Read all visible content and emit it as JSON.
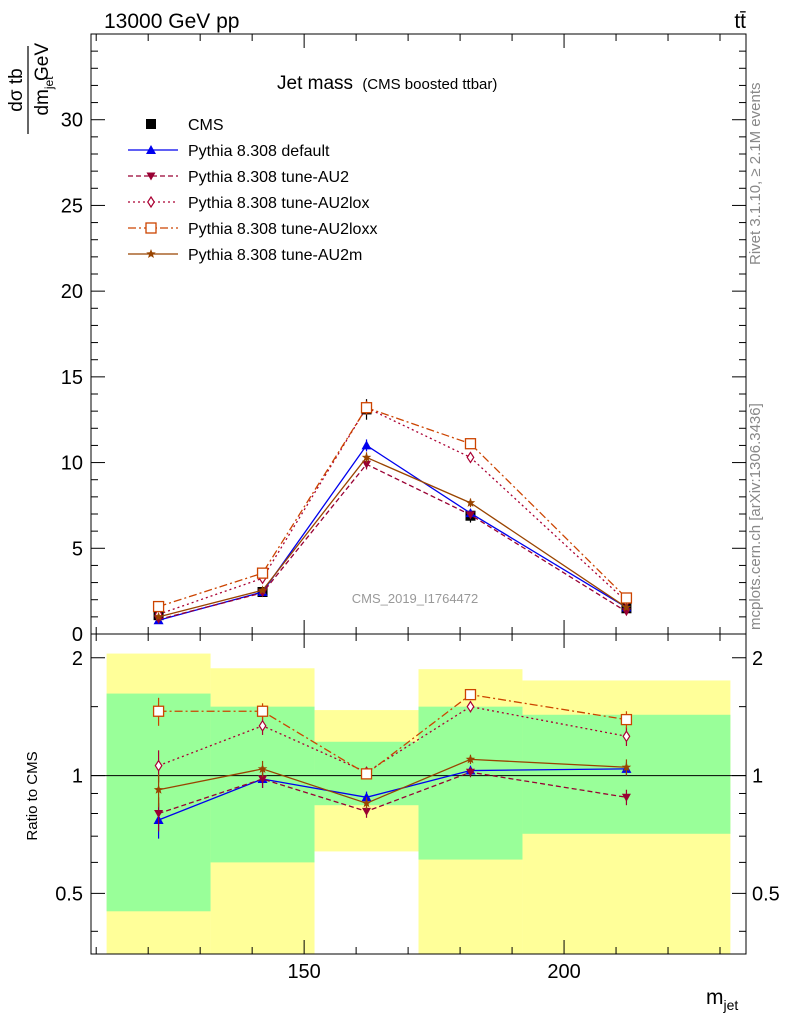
{
  "header": {
    "energy_label": "13000 GeV pp",
    "process_label": "tt̄"
  },
  "side": {
    "rivet": "Rivet 3.1.10, ≥ 2.1M events",
    "mcplots": "mcplots.cern.ch [arXiv:1306.3436]"
  },
  "watermark": "CMS_2019_I1764472",
  "chart_data": [
    {
      "type": "line",
      "title": "Jet mass",
      "subtitle": "(CMS boosted ttbar)",
      "ylabel_num": "dσ   tb",
      "ylabel_den": "dm",
      "ylabel_den_sub": "jet",
      "ylabel_unit": "GeV",
      "xlabel": "m",
      "xlabel_sub": "jet",
      "xlim": [
        109,
        235
      ],
      "ylim": [
        0,
        35
      ],
      "yticks": [
        "0",
        "5",
        "10",
        "15",
        "20",
        "25",
        "30"
      ],
      "bins": [
        [
          112,
          132
        ],
        [
          132,
          152
        ],
        [
          152,
          172
        ],
        [
          172,
          192
        ],
        [
          192,
          232
        ]
      ],
      "x": [
        122,
        142,
        162,
        182,
        212
      ],
      "series": [
        {
          "name": "CMS",
          "values": [
            1.1,
            2.45,
            13.1,
            6.9,
            1.5
          ],
          "errors": [
            0.2,
            0.25,
            0.6,
            0.4,
            0.15
          ],
          "color": "#000000",
          "marker": "square-filled",
          "dash": ""
        },
        {
          "name": "Pythia 8.308 default",
          "values": [
            0.8,
            2.45,
            11.0,
            7.05,
            1.55
          ],
          "errors": [
            0.07,
            0.1,
            0.35,
            0.2,
            0.1
          ],
          "color": "#0000ee",
          "marker": "triangle-up-filled",
          "dash": ""
        },
        {
          "name": "Pythia 8.308 tune-AU2",
          "values": [
            0.85,
            2.4,
            9.9,
            6.95,
            1.3
          ],
          "errors": [
            0.07,
            0.1,
            0.3,
            0.2,
            0.1
          ],
          "color": "#990033",
          "marker": "triangle-down-filled",
          "dash": "5,3"
        },
        {
          "name": "Pythia 8.308 tune-AU2lox",
          "values": [
            1.15,
            3.25,
            13.2,
            10.3,
            1.9
          ],
          "errors": [
            0.08,
            0.12,
            0.4,
            0.3,
            0.12
          ],
          "color": "#aa0033",
          "marker": "diamond-open",
          "dash": "2,3"
        },
        {
          "name": "Pythia 8.308 tune-AU2loxx",
          "values": [
            1.6,
            3.55,
            13.2,
            11.1,
            2.1
          ],
          "errors": [
            0.08,
            0.12,
            0.4,
            0.3,
            0.12
          ],
          "color": "#cc4400",
          "marker": "square-open",
          "dash": "8,3,2,3"
        },
        {
          "name": "Pythia 8.308 tune-AU2m",
          "values": [
            1.0,
            2.55,
            10.3,
            7.65,
            1.55
          ],
          "errors": [
            0.07,
            0.1,
            0.3,
            0.25,
            0.1
          ],
          "color": "#994400",
          "marker": "star",
          "dash": ""
        }
      ]
    },
    {
      "type": "line",
      "ylabel": "Ratio to CMS",
      "ylim": [
        0.35,
        2.3
      ],
      "log_y": true,
      "yticks": [
        "0.5",
        "1",
        "2"
      ],
      "xticks": [
        "150",
        "200"
      ],
      "reference_line": 1,
      "band_green": [
        [
          0.45,
          1.62
        ],
        [
          0.6,
          1.5
        ],
        [
          0.84,
          1.22
        ],
        [
          0.61,
          1.5
        ],
        [
          0.71,
          1.43
        ]
      ],
      "band_yellow": [
        [
          0.35,
          2.05
        ],
        [
          0.35,
          1.88
        ],
        [
          0.35,
          1.47
        ],
        [
          0.35,
          1.87
        ],
        [
          0.35,
          1.75
        ]
      ],
      "gap_white": [
        [
          0,
          0
        ],
        [
          0,
          0
        ],
        [
          0.35,
          0.64
        ],
        [
          0,
          0
        ],
        [
          0,
          0
        ]
      ],
      "series": [
        {
          "name": "Pythia 8.308 default",
          "values": [
            0.77,
            0.98,
            0.88,
            1.03,
            1.04
          ],
          "errors": [
            0.08,
            0.05,
            0.03,
            0.03,
            0.04
          ]
        },
        {
          "name": "Pythia 8.308 tune-AU2",
          "values": [
            0.8,
            0.98,
            0.81,
            1.02,
            0.88
          ],
          "errors": [
            0.08,
            0.05,
            0.03,
            0.03,
            0.04
          ]
        },
        {
          "name": "Pythia 8.308 tune-AU2lox",
          "values": [
            1.06,
            1.34,
            1.02,
            1.5,
            1.26
          ],
          "errors": [
            0.1,
            0.07,
            0.03,
            0.05,
            0.07
          ]
        },
        {
          "name": "Pythia 8.308 tune-AU2loxx",
          "values": [
            1.46,
            1.46,
            1.01,
            1.61,
            1.39
          ],
          "errors": [
            0.12,
            0.07,
            0.03,
            0.05,
            0.07
          ]
        },
        {
          "name": "Pythia 8.308 tune-AU2m",
          "values": [
            0.92,
            1.04,
            0.85,
            1.1,
            1.05
          ],
          "errors": [
            0.09,
            0.05,
            0.03,
            0.03,
            0.05
          ]
        }
      ]
    }
  ]
}
